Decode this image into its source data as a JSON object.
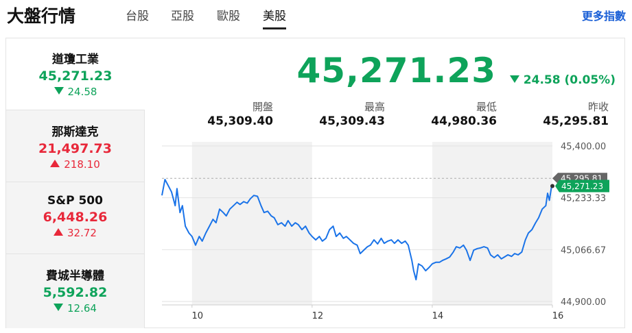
{
  "header": {
    "title": "大盤行情",
    "tabs": [
      "台股",
      "亞股",
      "歐股",
      "美股"
    ],
    "active_tab": 3,
    "more_link": "更多指數"
  },
  "indices": [
    {
      "name": "道瓊工業",
      "value": "45,271.23",
      "change": "24.58",
      "direction": "down"
    },
    {
      "name": "那斯達克",
      "value": "21,497.73",
      "change": "218.10",
      "direction": "up"
    },
    {
      "name": "S&P 500",
      "value": "6,448.26",
      "change": "32.72",
      "direction": "up"
    },
    {
      "name": "費城半導體",
      "value": "5,592.82",
      "change": "12.64",
      "direction": "down"
    }
  ],
  "active_index": 0,
  "quote": {
    "value": "45,271.23",
    "change": "24.58 (0.05%)",
    "direction": "down",
    "stats": [
      {
        "label": "開盤",
        "value": "45,309.40"
      },
      {
        "label": "最高",
        "value": "45,309.43"
      },
      {
        "label": "最低",
        "value": "44,980.36"
      },
      {
        "label": "昨收",
        "value": "45,295.81"
      }
    ]
  },
  "chart_data": {
    "type": "line",
    "color": "#1a73e8",
    "x": [
      9.5,
      9.55,
      9.6,
      9.66,
      9.72,
      9.75,
      9.8,
      9.84,
      9.89,
      9.95,
      10.0,
      10.06,
      10.12,
      10.17,
      10.23,
      10.29,
      10.35,
      10.4,
      10.46,
      10.52,
      10.57,
      10.63,
      10.69,
      10.75,
      10.8,
      10.86,
      10.92,
      10.97,
      11.03,
      11.09,
      11.15,
      11.2,
      11.26,
      11.32,
      11.37,
      11.43,
      11.49,
      11.55,
      11.6,
      11.66,
      11.72,
      11.77,
      11.83,
      11.89,
      11.95,
      12.0,
      12.06,
      12.12,
      12.17,
      12.23,
      12.29,
      12.35,
      12.4,
      12.46,
      12.52,
      12.57,
      12.63,
      12.69,
      12.75,
      12.8,
      12.86,
      12.92,
      12.97,
      13.03,
      13.09,
      13.15,
      13.2,
      13.26,
      13.32,
      13.37,
      13.43,
      13.49,
      13.55,
      13.6,
      13.66,
      13.69,
      13.73,
      13.77,
      13.83,
      13.89,
      13.95,
      14.0,
      14.06,
      14.12,
      14.17,
      14.23,
      14.29,
      14.35,
      14.4,
      14.46,
      14.52,
      14.57,
      14.63,
      14.69,
      14.75,
      14.8,
      14.86,
      14.92,
      14.97,
      15.03,
      15.09,
      15.15,
      15.2,
      15.26,
      15.32,
      15.37,
      15.43,
      15.49,
      15.55,
      15.6,
      15.66,
      15.72,
      15.77,
      15.83,
      15.89,
      15.92,
      15.95,
      15.99,
      16.0
    ],
    "values": [
      45241,
      45292,
      45274,
      45252,
      45208,
      45263,
      45186,
      45208,
      45142,
      45120,
      45109,
      45081,
      45109,
      45094,
      45120,
      45142,
      45164,
      45153,
      45197,
      45186,
      45175,
      45197,
      45208,
      45219,
      45212,
      45221,
      45216,
      45230,
      45241,
      45238,
      45208,
      45186,
      45190,
      45175,
      45169,
      45147,
      45153,
      45142,
      45160,
      45142,
      45153,
      45147,
      45131,
      45142,
      45120,
      45109,
      45098,
      45109,
      45094,
      45103,
      45131,
      45142,
      45109,
      45120,
      45103,
      45109,
      45098,
      45087,
      45081,
      45054,
      45065,
      45076,
      45081,
      45098,
      45085,
      45103,
      45087,
      45094,
      45098,
      45087,
      45098,
      45087,
      45094,
      45081,
      45032,
      44999,
      44970,
      45021,
      45014,
      44999,
      45010,
      45021,
      45026,
      45026,
      45032,
      45037,
      45043,
      45059,
      45076,
      45072,
      45081,
      45065,
      45032,
      45065,
      45070,
      45072,
      45076,
      45072,
      45050,
      45041,
      45050,
      45037,
      45043,
      45050,
      45045,
      45054,
      45050,
      45059,
      45098,
      45120,
      45131,
      45153,
      45169,
      45197,
      45208,
      45248,
      45225,
      45274,
      45271.23
    ],
    "xlim": [
      9.5,
      16
    ],
    "xticks": [
      10,
      12,
      14,
      16
    ],
    "ylim": [
      44900,
      45400
    ],
    "yticks": [
      {
        "value": 44900,
        "label": "44,900.00"
      },
      {
        "value": 45066.67,
        "label": "45,066.67"
      },
      {
        "value": 45233.33,
        "label": "45,233.33"
      },
      {
        "value": 45400,
        "label": "45,400.00"
      }
    ],
    "grid": true,
    "reference": {
      "value": 45295.81,
      "label": "45,295.81"
    },
    "last_value_label": "45,271.23"
  }
}
